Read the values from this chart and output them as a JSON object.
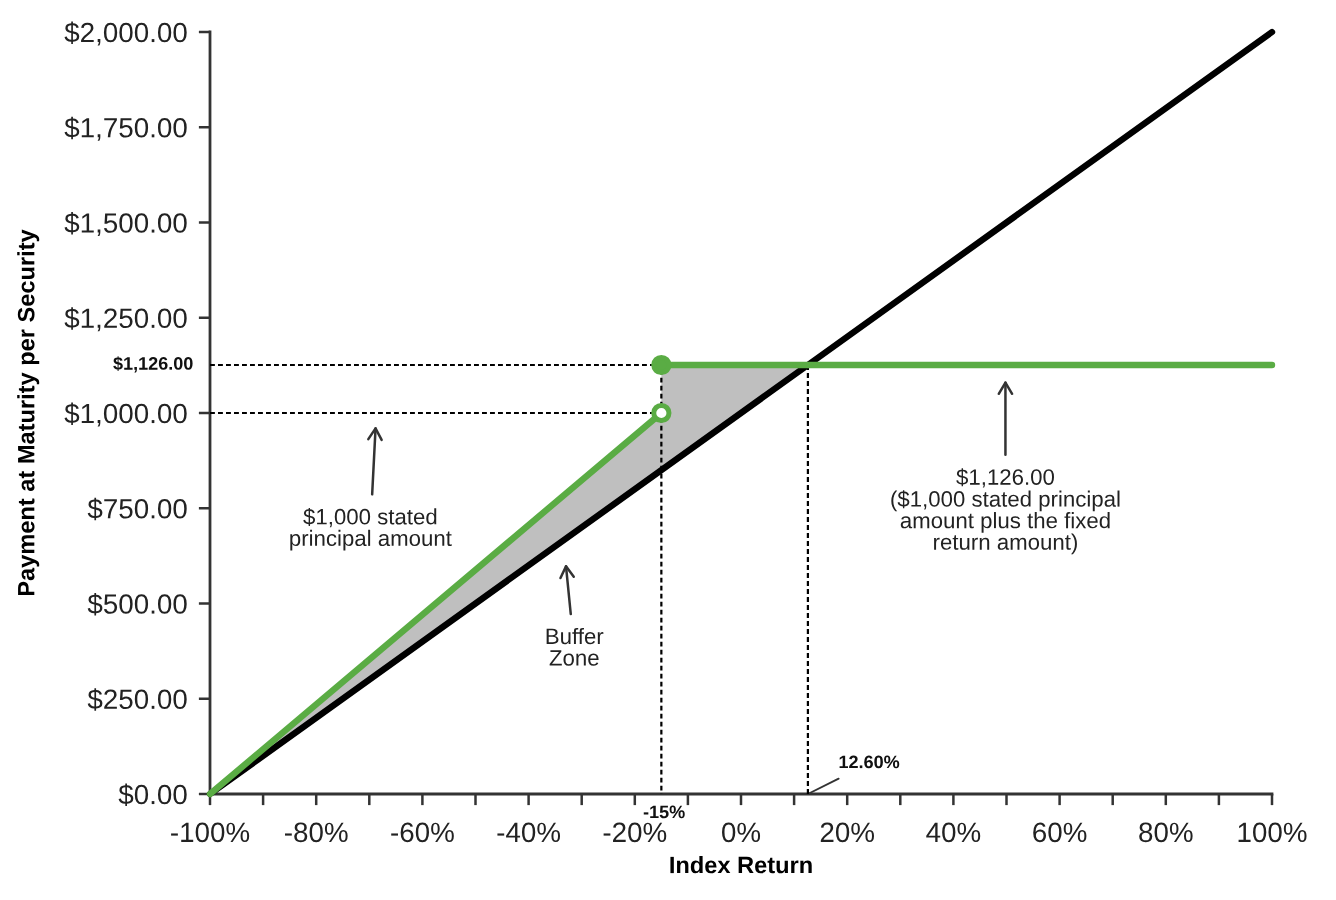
{
  "chart_data": {
    "type": "line",
    "xlabel": "Index Return",
    "ylabel": "Payment at Maturity per Security",
    "xlim": [
      -100,
      100
    ],
    "xticks": [
      {
        "value": -100,
        "label": "-100%"
      },
      {
        "value": -90,
        "label": null
      },
      {
        "value": -80,
        "label": "-80%"
      },
      {
        "value": -70,
        "label": null
      },
      {
        "value": -60,
        "label": "-60%"
      },
      {
        "value": -50,
        "label": null
      },
      {
        "value": -40,
        "label": "-40%"
      },
      {
        "value": -30,
        "label": null
      },
      {
        "value": -20,
        "label": "-20%"
      },
      {
        "value": -10,
        "label": null
      },
      {
        "value": 0,
        "label": "0%"
      },
      {
        "value": 10,
        "label": null
      },
      {
        "value": 20,
        "label": "20%"
      },
      {
        "value": 30,
        "label": null
      },
      {
        "value": 40,
        "label": "40%"
      },
      {
        "value": 50,
        "label": null
      },
      {
        "value": 60,
        "label": "60%"
      },
      {
        "value": 70,
        "label": null
      },
      {
        "value": 80,
        "label": "80%"
      },
      {
        "value": 90,
        "label": null
      },
      {
        "value": 100,
        "label": "100%"
      }
    ],
    "ylim": [
      0,
      2000
    ],
    "yticks": [
      {
        "value": 0,
        "label": "$0.00"
      },
      {
        "value": 250,
        "label": "$250.00"
      },
      {
        "value": 500,
        "label": "$500.00"
      },
      {
        "value": 750,
        "label": "$750.00"
      },
      {
        "value": 1000,
        "label": "$1,000.00"
      },
      {
        "value": 1250,
        "label": "$1,250.00"
      },
      {
        "value": 1500,
        "label": "$1,500.00"
      },
      {
        "value": 1750,
        "label": "$1,750.00"
      },
      {
        "value": 2000,
        "label": "$2,000.00"
      }
    ],
    "series": [
      {
        "color": "#000000",
        "line_style": "dashed",
        "x": [
          -100,
          -15,
          -15
        ],
        "values": [
          1126,
          1126,
          0
        ]
      },
      {
        "color": "#000000",
        "line_style": "dashed",
        "x": [
          -100,
          -15
        ],
        "values": [
          1000,
          1000
        ]
      },
      {
        "color": "#000000",
        "line_style": "dashed",
        "x": [
          12.6,
          12.6
        ],
        "values": [
          0,
          1126
        ]
      },
      {
        "color": "#000000",
        "line_style": "solid",
        "x": [
          -100,
          -15,
          -15,
          12.6,
          100
        ],
        "values": [
          0,
          850,
          850,
          1126,
          2000
        ],
        "lower": [
          0,
          850,
          850,
          1126,
          null
        ],
        "upper": [
          0,
          1000,
          1126,
          1126,
          null
        ]
      },
      {
        "color": "#5aac44",
        "line_style": "solid",
        "x": [
          -100,
          -15,
          null,
          -15,
          100
        ],
        "values": [
          0,
          1000,
          null,
          1126,
          1126
        ]
      },
      {
        "type": "scatter",
        "color": "#5aac44",
        "colors": [
          "#5aac44",
          "#ffffff"
        ],
        "marker": "circle",
        "x": [
          -15,
          -15
        ],
        "values": [
          1126,
          1000
        ]
      }
    ],
    "annotations": [
      "$1,000 stated\nprincipal amount",
      "Buffer\nZone",
      "$1,126.00\n($1,000 stated principal\namount plus the fixed\nreturn amount)",
      {
        "text": "$1,126.00",
        "x": -100,
        "y": 1126
      },
      {
        "text": "-15%",
        "x": -15,
        "y": 0
      },
      {
        "text": "12.60%",
        "x": 12.6,
        "y": 0
      }
    ]
  }
}
